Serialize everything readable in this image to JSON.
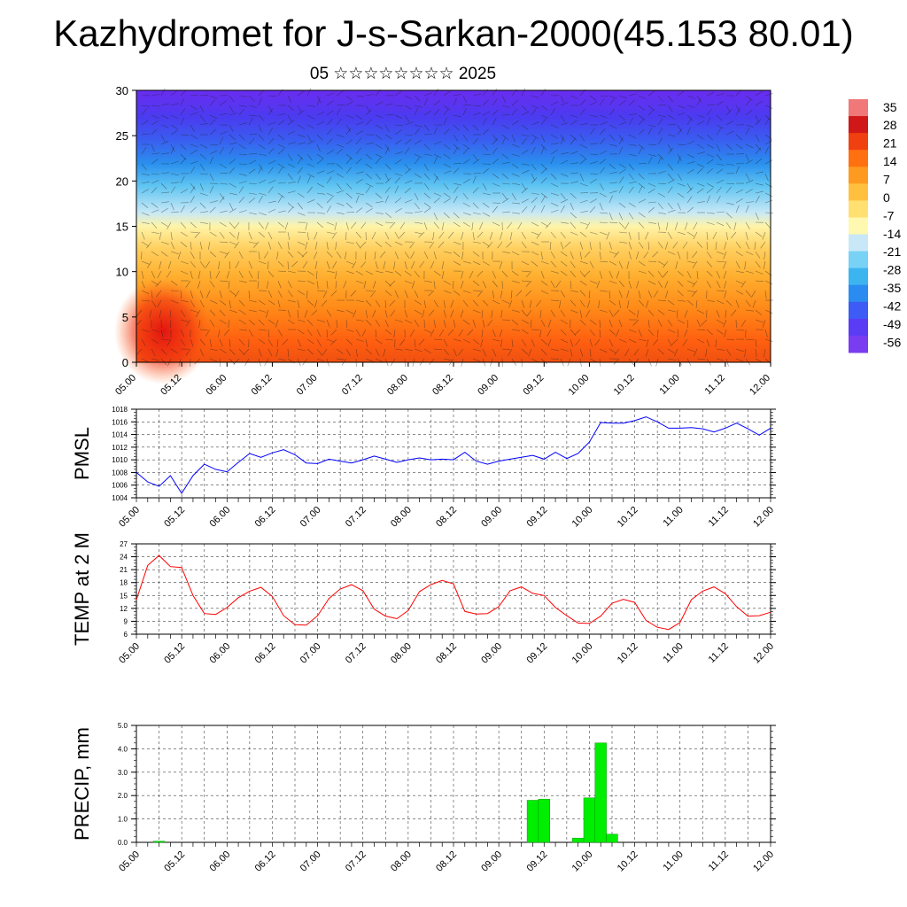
{
  "header": {
    "title": "Kazhydromet for J-s-Sarkan-2000(45.153 80.01)",
    "subtitle": "05 ☆☆☆☆☆☆☆☆ 2025"
  },
  "colors": {
    "pmsl_line": "#0000ff",
    "temp_line": "#ff0000",
    "precip_bar": "#00ee00",
    "colorbar": [
      "#7a3cf0",
      "#5a3cf5",
      "#3c5cf5",
      "#2a8cf0",
      "#3cb4f0",
      "#78d2f5",
      "#c8e8f8",
      "#fff8b0",
      "#ffe070",
      "#ffc040",
      "#ff9a20",
      "#ff7010",
      "#f04010",
      "#d01818",
      "#f07878"
    ]
  },
  "chart_data": [
    {
      "type": "heatmap",
      "title": "",
      "ylim": [
        0,
        30
      ],
      "yticks": [
        "0",
        "5",
        "10",
        "15",
        "20",
        "25",
        "30"
      ],
      "xticks": [
        "05.00",
        "05.12",
        "06.00",
        "06.12",
        "07.00",
        "07.12",
        "08.00",
        "08.12",
        "09.00",
        "09.12",
        "10.00",
        "10.12",
        "11.00",
        "11.12",
        "12.00"
      ],
      "colorbar_labels": [
        "35",
        "28",
        "21",
        "14",
        "7",
        "0",
        "-7",
        "-14",
        "-21",
        "-28",
        "-35",
        "-42",
        "-49",
        "-56"
      ],
      "colorbar_range": [
        -60,
        38
      ],
      "overlay": "wind barbs",
      "grid": false
    },
    {
      "type": "line",
      "ylabel": "PMSL",
      "ylim": [
        1004,
        1018
      ],
      "yticks": [
        "1004",
        "1006",
        "1008",
        "1010",
        "1012",
        "1014",
        "1016",
        "1018"
      ],
      "xticks": [
        "05.00",
        "05.12",
        "06.00",
        "06.12",
        "07.00",
        "07.12",
        "08.00",
        "08.12",
        "09.00",
        "09.12",
        "10.00",
        "10.12",
        "11.00",
        "11.12",
        "12.00"
      ],
      "x_hours": [
        0,
        3,
        6,
        9,
        12,
        15,
        18,
        21,
        24,
        27,
        30,
        33,
        36,
        39,
        42,
        45,
        48,
        51,
        54,
        57,
        60,
        63,
        66,
        69,
        72,
        75,
        78,
        81,
        84,
        87,
        90,
        93,
        96,
        99,
        102,
        105,
        108,
        111,
        114,
        117,
        120,
        123,
        126,
        129,
        132,
        135,
        138,
        141,
        144,
        147,
        150,
        153,
        156,
        159,
        162,
        165,
        168
      ],
      "series": [
        {
          "name": "PMSL",
          "values": [
            1008,
            1006.5,
            1005.8,
            1007.5,
            1004.7,
            1007.5,
            1009.3,
            1008.5,
            1008.1,
            1009.6,
            1011,
            1010.4,
            1011.1,
            1011.6,
            1010.8,
            1009.5,
            1009.4,
            1010.1,
            1009.8,
            1009.5,
            1010,
            1010.6,
            1010.1,
            1009.6,
            1010,
            1010.3,
            1010,
            1010.1,
            1010,
            1011.2,
            1009.8,
            1009.3,
            1009.8,
            1010.1,
            1010.4,
            1010.7,
            1010.1,
            1011.2,
            1010.2,
            1011,
            1012.8,
            1015.9,
            1015.8,
            1015.8,
            1016.2,
            1016.8,
            1016,
            1015,
            1015,
            1015.1,
            1014.9,
            1014.4,
            1015,
            1015.8,
            1014.9,
            1013.9,
            1015
          ]
        }
      ],
      "grid": true
    },
    {
      "type": "line",
      "ylabel": "TEMP at 2 M",
      "ylim": [
        6,
        27
      ],
      "yticks": [
        "6",
        "9",
        "12",
        "15",
        "18",
        "21",
        "24",
        "27"
      ],
      "xticks": [
        "05.00",
        "05.12",
        "06.00",
        "06.12",
        "07.00",
        "07.12",
        "08.00",
        "08.12",
        "09.00",
        "09.12",
        "10.00",
        "10.12",
        "11.00",
        "11.12",
        "12.00"
      ],
      "x_hours": [
        0,
        3,
        6,
        9,
        12,
        15,
        18,
        21,
        24,
        27,
        30,
        33,
        36,
        39,
        42,
        45,
        48,
        51,
        54,
        57,
        60,
        63,
        66,
        69,
        72,
        75,
        78,
        81,
        84,
        87,
        90,
        93,
        96,
        99,
        102,
        105,
        108,
        111,
        114,
        117,
        120,
        123,
        126,
        129,
        132,
        135,
        138,
        141,
        144,
        147,
        150,
        153,
        156,
        159,
        162,
        165,
        168
      ],
      "series": [
        {
          "name": "TEMP at 2 M",
          "values": [
            14,
            22,
            24.3,
            21.7,
            21.5,
            15,
            10.8,
            10.6,
            12.2,
            14.5,
            16,
            16.9,
            14.8,
            10.3,
            8.2,
            8.1,
            10.3,
            14.3,
            16.5,
            17.5,
            16.1,
            11.8,
            10.2,
            9.6,
            11.5,
            15.9,
            17.5,
            18.5,
            17.7,
            11.3,
            10.7,
            10.8,
            12.4,
            16.1,
            17,
            15.5,
            15,
            12.2,
            10.3,
            8.6,
            8.5,
            10.2,
            13.2,
            14.1,
            13.4,
            9.2,
            7.6,
            7.1,
            8.7,
            14,
            16,
            17,
            15.4,
            12.4,
            10.2,
            10.3,
            11.1
          ]
        }
      ],
      "grid": true
    },
    {
      "type": "bar",
      "ylabel": "PRECIP, mm",
      "ylim": [
        0,
        5
      ],
      "yticks": [
        "0.0",
        "1.0",
        "2.0",
        "3.0",
        "4.0",
        "5.0"
      ],
      "xticks": [
        "05.00",
        "05.12",
        "06.00",
        "06.12",
        "07.00",
        "07.12",
        "08.00",
        "08.12",
        "09.00",
        "09.12",
        "10.00",
        "10.12",
        "11.00",
        "11.12",
        "12.00"
      ],
      "bars": [
        {
          "hour": 6,
          "value": 0.05
        },
        {
          "hour": 105,
          "value": 1.8
        },
        {
          "hour": 108,
          "value": 1.85
        },
        {
          "hour": 117,
          "value": 0.18
        },
        {
          "hour": 120,
          "value": 1.9
        },
        {
          "hour": 123,
          "value": 4.25
        },
        {
          "hour": 126,
          "value": 0.35
        }
      ],
      "grid": true
    }
  ]
}
